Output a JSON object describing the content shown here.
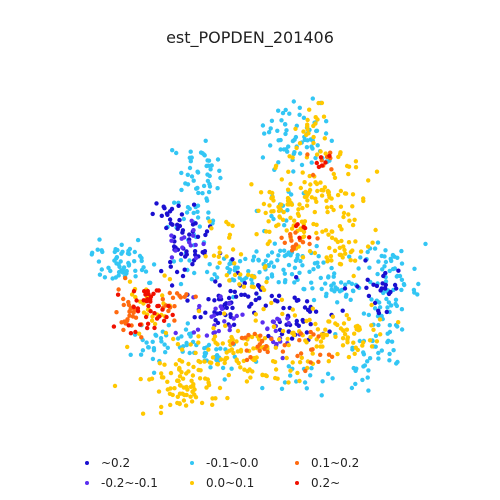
{
  "title": "est_POPDEN_201406",
  "legend": {
    "items": [
      {
        "label": "~0.2",
        "color": "#1a0fd0"
      },
      {
        "label": "-0.2~-0.1",
        "color": "#5a2ef0"
      },
      {
        "label": "-0.1~0.0",
        "color": "#33c6f4"
      },
      {
        "label": "0.0~0.1",
        "color": "#ffc800"
      },
      {
        "label": "0.1~0.2",
        "color": "#ff6a10"
      },
      {
        "label": "0.2~",
        "color": "#f01000"
      }
    ]
  },
  "chart_data": {
    "type": "scatter",
    "title": "est_POPDEN_201406",
    "legend_position": "bottom",
    "classes": [
      "~0.2",
      "-0.2~-0.1",
      "-0.1~0.0",
      "0.0~0.1",
      "0.1~0.2",
      "0.2~"
    ],
    "grid": false,
    "axes": "hidden"
  }
}
